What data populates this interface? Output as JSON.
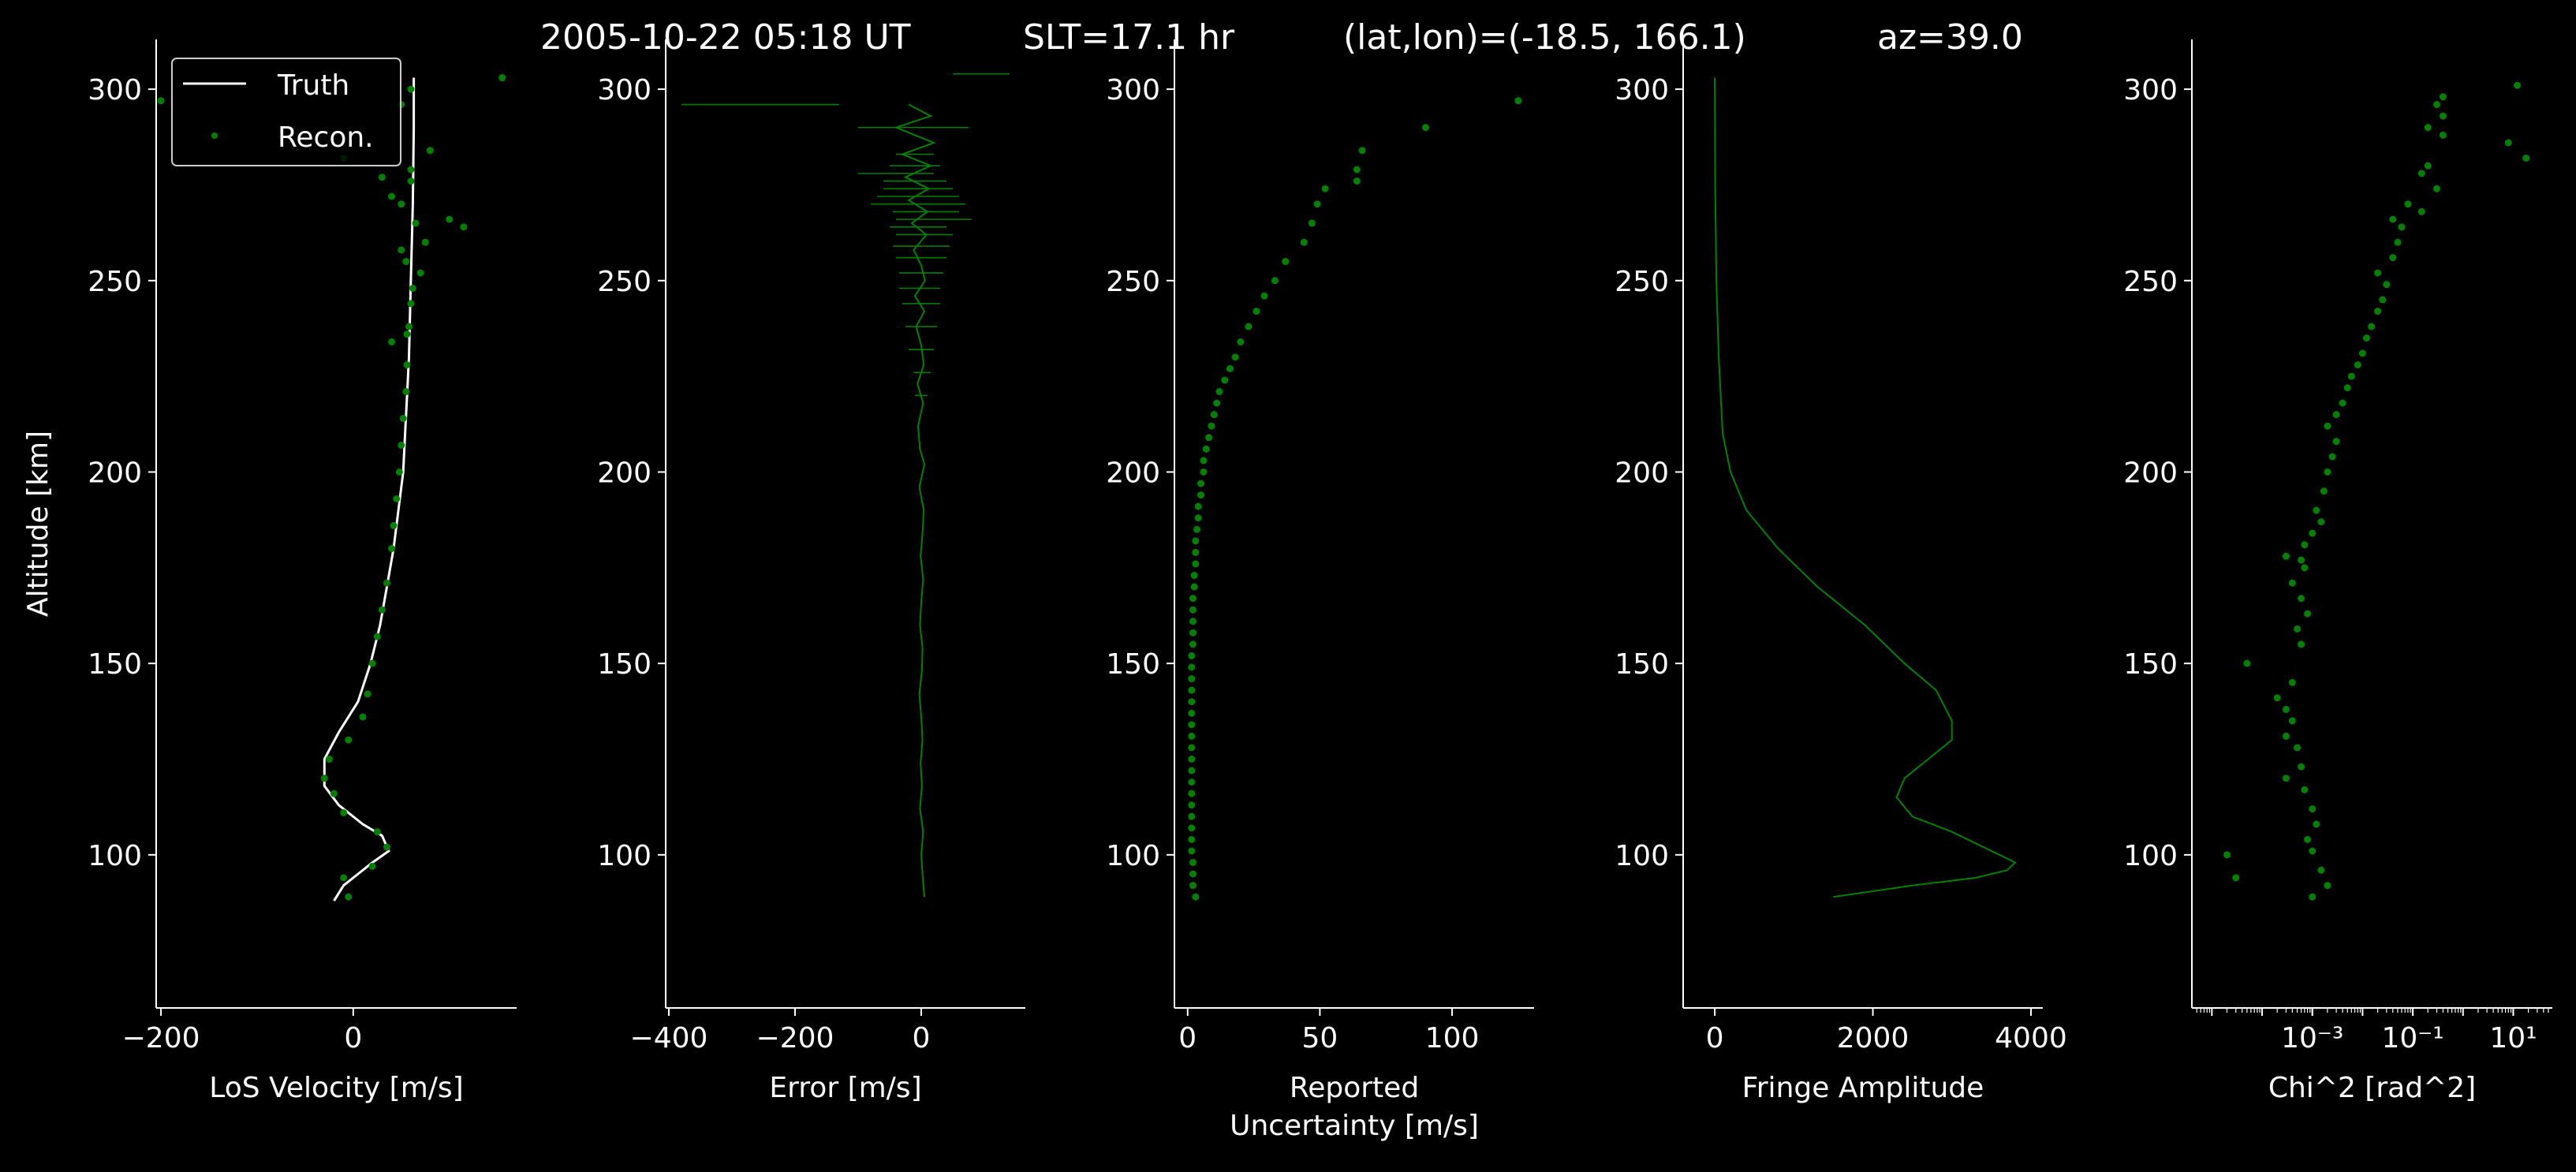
{
  "figure": {
    "title": {
      "datetime": "2005-10-22 05:18 UT",
      "slt": "SLT=17.1 hr",
      "latlon": "(lat,lon)=(-18.5, 166.1)",
      "az": "az=39.0"
    },
    "ylabel": "Altitude [km]",
    "background": "#000000",
    "axis_color": "#ffffff",
    "data_color": "#008000",
    "truth_color": "#ffffff"
  },
  "chart_data": [
    {
      "id": "los",
      "type": "line",
      "xlabel": "LoS Velocity [m/s]",
      "ylabel": "Altitude [km]",
      "xlim": [
        -205,
        170
      ],
      "ylim": [
        60,
        313
      ],
      "xticks": [
        -200,
        0
      ],
      "xtick_labels": [
        "−200",
        "0"
      ],
      "yticks": [
        100,
        150,
        200,
        250,
        300
      ],
      "ytick_labels": [
        "100",
        "150",
        "200",
        "250",
        "300"
      ],
      "legend": {
        "position": "top-left",
        "entries": [
          "Truth",
          "Recon."
        ]
      },
      "series": [
        {
          "name": "Truth",
          "kind": "line",
          "color": "#ffffff",
          "x": [
            -20,
            -10,
            0,
            20,
            37,
            30,
            10,
            -15,
            -30,
            -30,
            -15,
            5,
            18,
            28,
            35,
            42,
            47,
            52,
            54,
            56,
            58,
            60,
            62,
            63,
            63
          ],
          "y": [
            88,
            92,
            94,
            98,
            101,
            105,
            108,
            113,
            118,
            125,
            132,
            140,
            150,
            160,
            170,
            180,
            190,
            200,
            210,
            220,
            230,
            250,
            270,
            290,
            303
          ]
        },
        {
          "name": "Recon.",
          "kind": "points",
          "color": "#008000",
          "x": [
            -5,
            -10,
            20,
            35,
            25,
            -10,
            -20,
            -30,
            -25,
            -5,
            10,
            15,
            20,
            25,
            30,
            35,
            40,
            42,
            45,
            48,
            50,
            52,
            55,
            56,
            56,
            58,
            40,
            60,
            62,
            70,
            55,
            50,
            75,
            65,
            50,
            40,
            30,
            100,
            115,
            60,
            80,
            60,
            -10,
            50,
            60,
            -200,
            155
          ],
          "y": [
            89,
            94,
            97,
            102,
            106,
            111,
            116,
            120,
            125,
            130,
            136,
            142,
            150,
            157,
            164,
            171,
            180,
            186,
            193,
            200,
            207,
            214,
            221,
            228,
            236,
            238,
            234,
            244,
            248,
            252,
            255,
            258,
            260,
            265,
            270,
            272,
            277,
            266,
            264,
            279,
            284,
            276,
            282,
            296,
            300,
            297,
            303
          ]
        }
      ]
    },
    {
      "id": "err",
      "type": "line",
      "xlabel": "Error [m/s]",
      "xlim": [
        -405,
        165
      ],
      "ylim": [
        60,
        313
      ],
      "xticks": [
        -400,
        -200,
        0
      ],
      "xtick_labels": [
        "−400",
        "−200",
        "0"
      ],
      "yticks": [
        100,
        150,
        200,
        250,
        300
      ],
      "ytick_labels": [
        "100",
        "150",
        "200",
        "250",
        "300"
      ],
      "series": [
        {
          "name": "",
          "kind": "line",
          "color": "#008000",
          "x": [
            5,
            2,
            0,
            3,
            -2,
            1,
            -1,
            2,
            0,
            -3,
            1,
            2,
            -2,
            0,
            3,
            -1,
            2,
            4,
            -3,
            5,
            -2,
            -5,
            3,
            -6,
            4,
            0,
            -8,
            5,
            -10,
            6,
            0,
            -12,
            8,
            -15,
            10,
            -20,
            12,
            -25,
            15,
            -30,
            20,
            -40,
            15,
            -20
          ],
          "y": [
            89,
            95,
            100,
            106,
            112,
            118,
            124,
            130,
            136,
            142,
            148,
            154,
            160,
            166,
            172,
            178,
            184,
            190,
            196,
            202,
            206,
            212,
            218,
            223,
            228,
            233,
            238,
            242,
            246,
            250,
            254,
            258,
            262,
            265,
            268,
            271,
            274,
            277,
            280,
            283,
            286,
            290,
            293,
            296
          ]
        },
        {
          "name": "",
          "kind": "hbars",
          "color": "#008000",
          "y": [
            220,
            226,
            232,
            238,
            244,
            248,
            252,
            256,
            259,
            262,
            264,
            266,
            268,
            270,
            272,
            274,
            276,
            278,
            280,
            283,
            290,
            296,
            304
          ],
          "xmin": [
            -10,
            -12,
            -20,
            -25,
            -30,
            -35,
            -35,
            -40,
            -45,
            -40,
            -50,
            -40,
            -45,
            -80,
            -70,
            -60,
            -60,
            -100,
            -50,
            -40,
            -100,
            -380,
            50
          ],
          "xmax": [
            10,
            15,
            20,
            25,
            30,
            30,
            35,
            40,
            45,
            50,
            40,
            80,
            60,
            70,
            60,
            50,
            40,
            20,
            30,
            20,
            75,
            -130,
            140
          ]
        }
      ]
    },
    {
      "id": "unc",
      "type": "scatter",
      "xlabel": "Reported\nUncertainty [m/s]",
      "xlim": [
        -5,
        131
      ],
      "ylim": [
        60,
        313
      ],
      "xticks": [
        0,
        50,
        100
      ],
      "xtick_labels": [
        "0",
        "50",
        "100"
      ],
      "yticks": [
        100,
        150,
        200,
        250,
        300
      ],
      "ytick_labels": [
        "100",
        "150",
        "200",
        "250",
        "300"
      ],
      "series": [
        {
          "name": "",
          "kind": "points",
          "color": "#008000",
          "x": [
            3,
            2,
            2,
            2,
            1.5,
            1.5,
            1.5,
            1.5,
            1.5,
            1.5,
            1.5,
            1.5,
            1.5,
            1.5,
            1.5,
            1.5,
            1.5,
            1.5,
            1.5,
            1.5,
            1.5,
            1.5,
            2,
            2,
            2,
            2,
            2,
            2.5,
            2.5,
            3,
            3,
            3,
            3.5,
            4,
            4,
            5,
            5,
            6,
            6,
            7,
            8,
            9,
            10,
            11,
            12,
            14,
            16,
            18,
            20,
            23,
            26,
            29,
            33,
            37,
            44,
            47,
            49,
            52,
            64,
            64,
            66,
            90,
            125
          ],
          "y": [
            89,
            92,
            95,
            98,
            101,
            104,
            107,
            110,
            113,
            116,
            119,
            122,
            125,
            128,
            131,
            134,
            137,
            140,
            143,
            146,
            149,
            152,
            155,
            158,
            161,
            164,
            167,
            170,
            173,
            176,
            179,
            182,
            185,
            188,
            191,
            194,
            197,
            200,
            203,
            206,
            209,
            212,
            215,
            218,
            221,
            224,
            227,
            230,
            234,
            238,
            242,
            246,
            250,
            255,
            260,
            265,
            270,
            274,
            276,
            279,
            284,
            290,
            297
          ]
        }
      ]
    },
    {
      "id": "amp",
      "type": "line",
      "xlabel": "Fringe Amplitude",
      "xlim": [
        -400,
        4150
      ],
      "ylim": [
        60,
        313
      ],
      "xticks": [
        0,
        2000,
        4000
      ],
      "xtick_labels": [
        "0",
        "2000",
        "4000"
      ],
      "yticks": [
        100,
        150,
        200,
        250,
        300
      ],
      "ytick_labels": [
        "100",
        "150",
        "200",
        "250",
        "300"
      ],
      "series": [
        {
          "name": "",
          "kind": "line",
          "color": "#008000",
          "x": [
            1500,
            2500,
            3300,
            3700,
            3800,
            3600,
            3000,
            2500,
            2300,
            2400,
            2700,
            3000,
            3000,
            2800,
            2400,
            1900,
            1300,
            800,
            400,
            200,
            100,
            50,
            20,
            5,
            0
          ],
          "y": [
            89,
            92,
            94,
            96,
            98,
            100,
            106,
            110,
            115,
            120,
            125,
            130,
            135,
            143,
            150,
            160,
            170,
            180,
            190,
            200,
            210,
            230,
            250,
            275,
            303
          ]
        }
      ]
    },
    {
      "id": "chi",
      "type": "scatter",
      "scale": "log",
      "xlabel": "Chi^2 [rad^2]",
      "xlim": [
        4e-06,
        60
      ],
      "ylim": [
        60,
        313
      ],
      "xticks": [
        0.001,
        0.1,
        10
      ],
      "xtick_labels": [
        "10⁻³",
        "10⁻¹",
        "10¹"
      ],
      "yticks": [
        100,
        150,
        200,
        250,
        300
      ],
      "ytick_labels": [
        "100",
        "150",
        "200",
        "250",
        "300"
      ],
      "series": [
        {
          "name": "",
          "kind": "points",
          "color": "#008000",
          "x": [
            0.001,
            3e-05,
            2e-05,
            0.002,
            0.0015,
            0.001,
            0.0008,
            0.0012,
            0.001,
            0.0007,
            0.0003,
            0.0006,
            0.0005,
            0.0003,
            0.0004,
            0.0003,
            5e-05,
            0.0002,
            0.0004,
            0.0006,
            0.0005,
            0.0008,
            0.0006,
            0.0004,
            0.0007,
            0.0003,
            0.0006,
            0.0007,
            0.001,
            0.0015,
            0.0012,
            0.0017,
            0.002,
            0.0025,
            0.003,
            0.002,
            0.003,
            0.004,
            0.005,
            0.006,
            0.008,
            0.01,
            0.012,
            0.015,
            0.02,
            0.025,
            0.03,
            0.02,
            0.04,
            0.05,
            0.06,
            0.04,
            0.08,
            0.15,
            0.15,
            0.2,
            0.3,
            0.4,
            0.2,
            8,
            12,
            18,
            0.3,
            0.4,
            0.4
          ],
          "y": [
            89,
            94,
            100,
            92,
            96,
            101,
            104,
            108,
            112,
            117,
            120,
            123,
            128,
            131,
            135,
            138,
            150,
            141,
            145,
            155,
            159,
            163,
            167,
            171,
            175,
            178,
            177,
            181,
            184,
            187,
            190,
            195,
            200,
            204,
            208,
            212,
            215,
            218,
            222,
            225,
            228,
            231,
            235,
            238,
            242,
            245,
            249,
            252,
            256,
            260,
            264,
            266,
            270,
            268,
            278,
            280,
            274,
            288,
            290,
            286,
            301,
            282,
            296,
            293,
            298
          ]
        }
      ]
    }
  ]
}
